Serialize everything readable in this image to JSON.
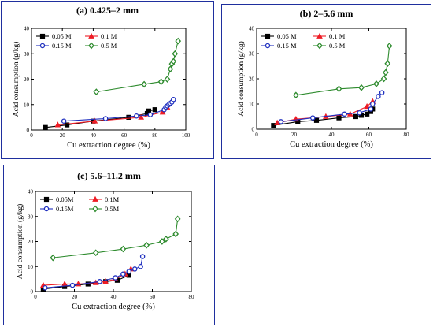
{
  "chart_data": [
    {
      "type": "scatter",
      "title": "(a) 0.425–2 mm",
      "xlabel": "Cu extraction degree (%)",
      "ylabel": "Acid consumption (g/kg)",
      "xlim": [
        0,
        100
      ],
      "ylim": [
        0,
        40
      ],
      "xticks": [
        0,
        20,
        40,
        60,
        80,
        100
      ],
      "yticks": [
        0,
        10,
        20,
        30,
        40
      ],
      "legend": "top-left",
      "series": [
        {
          "name": "0.05 M",
          "marker": "square",
          "color": "#000000",
          "x": [
            9,
            23,
            40,
            63,
            75,
            76,
            80
          ],
          "y": [
            1,
            2,
            3.5,
            5,
            6.5,
            7.5,
            8
          ]
        },
        {
          "name": "0.1 M",
          "marker": "triangle",
          "color": "#ee1c25",
          "x": [
            17,
            41,
            71,
            85,
            88
          ],
          "y": [
            2,
            3.5,
            5,
            7,
            9
          ]
        },
        {
          "name": "0.15 M",
          "marker": "circle",
          "color": "#1f2fbf",
          "x": [
            21,
            48,
            68,
            77,
            86,
            87,
            88,
            89,
            90,
            91,
            92
          ],
          "y": [
            3.5,
            4.5,
            5.5,
            6,
            8,
            9,
            9.5,
            10,
            10.5,
            11,
            12
          ]
        },
        {
          "name": "0.5 M",
          "marker": "diamond",
          "color": "#2e8b2e",
          "x": [
            42,
            73,
            84,
            88,
            90,
            91,
            92,
            93,
            95
          ],
          "y": [
            15,
            18,
            19,
            20,
            24,
            26,
            27,
            30,
            35
          ]
        }
      ]
    },
    {
      "type": "scatter",
      "title": "(b) 2–5.6 mm",
      "xlabel": "Cu extraction degree (%)",
      "ylabel": "Acid consumption (g/kg)",
      "xlim": [
        0,
        80
      ],
      "ylim": [
        0,
        40
      ],
      "xticks": [
        0,
        20,
        40,
        60,
        80
      ],
      "yticks": [
        0,
        10,
        20,
        30,
        40
      ],
      "legend": "top-left",
      "series": [
        {
          "name": "0.05 M",
          "marker": "square",
          "color": "#000000",
          "x": [
            9,
            22,
            32,
            44,
            53,
            56,
            59,
            61,
            62
          ],
          "y": [
            1.5,
            3,
            3.5,
            4.5,
            5,
            5.5,
            6,
            7,
            8
          ]
        },
        {
          "name": "0.1 M",
          "marker": "triangle",
          "color": "#ee1c25",
          "x": [
            11,
            21,
            37,
            50,
            59,
            62
          ],
          "y": [
            2.5,
            4,
            5,
            6,
            9,
            11
          ]
        },
        {
          "name": "0.15 M",
          "marker": "circle",
          "color": "#1f2fbf",
          "x": [
            13,
            30,
            47,
            55,
            61,
            62,
            65,
            67
          ],
          "y": [
            3,
            4.5,
            6,
            6.5,
            8,
            10,
            13,
            14.5
          ]
        },
        {
          "name": "0.5 M",
          "marker": "diamond",
          "color": "#2e8b2e",
          "x": [
            21,
            44,
            56,
            64,
            68,
            69,
            70,
            71
          ],
          "y": [
            13.5,
            16,
            16.5,
            18,
            20,
            22.5,
            26,
            33
          ]
        }
      ]
    },
    {
      "type": "scatter",
      "title": "(c) 5.6–11.2 mm",
      "xlabel": "Cu extraction degree (%)",
      "ylabel": "Acid consumption (g/kg)",
      "xlim": [
        0,
        80
      ],
      "ylim": [
        0,
        40
      ],
      "xticks": [
        0,
        20,
        40,
        60,
        80
      ],
      "yticks": [
        0,
        10,
        20,
        30,
        40
      ],
      "legend": "top-left",
      "series": [
        {
          "name": "0.05M",
          "marker": "square",
          "color": "#000000",
          "x": [
            4,
            15,
            27,
            36,
            42,
            48
          ],
          "y": [
            1,
            2,
            3,
            4,
            4.5,
            6.5
          ]
        },
        {
          "name": "0.1M",
          "marker": "triangle",
          "color": "#ee1c25",
          "x": [
            4,
            15,
            22,
            31,
            36,
            41,
            46,
            49
          ],
          "y": [
            2.5,
            3,
            3,
            3.5,
            4,
            5,
            7,
            9
          ]
        },
        {
          "name": "0.15M",
          "marker": "circle",
          "color": "#1f2fbf",
          "x": [
            5,
            19,
            33,
            41,
            45,
            48,
            51,
            54,
            55
          ],
          "y": [
            1.5,
            2.5,
            4,
            5.5,
            7,
            8,
            9,
            10,
            14
          ]
        },
        {
          "name": "0.5M",
          "marker": "diamond",
          "color": "#2e8b2e",
          "x": [
            9,
            31,
            45,
            57,
            65,
            67,
            72,
            73
          ],
          "y": [
            13.5,
            15.5,
            17,
            18.5,
            20,
            21,
            23,
            29
          ]
        }
      ]
    }
  ]
}
